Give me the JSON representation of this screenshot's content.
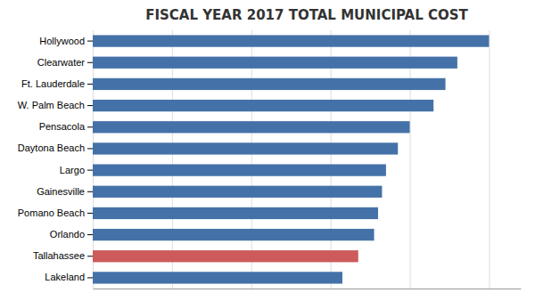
{
  "chart_data": {
    "type": "bar",
    "orientation": "horizontal",
    "title": "FISCAL YEAR 2017 TOTAL MUNICIPAL COST",
    "categories": [
      "Lakeland",
      "Tallahassee",
      "Orlando",
      "Pomano Beach",
      "Gainesville",
      "Largo",
      "Daytona Beach",
      "Pensacola",
      "W. Palm Beach",
      "Ft. Lauderdale",
      "Clearwater",
      "Hollywood"
    ],
    "values": [
      63,
      67,
      71,
      72,
      73,
      74,
      77,
      80,
      86,
      89,
      92,
      100
    ],
    "colors": [
      "#4472A8",
      "#CD5B5B",
      "#4472A8",
      "#4472A8",
      "#4472A8",
      "#4472A8",
      "#4472A8",
      "#4472A8",
      "#4472A8",
      "#4472A8",
      "#4472A8",
      "#4472A8"
    ],
    "xlim": [
      0,
      108
    ],
    "xticks": [
      0,
      20,
      40,
      60,
      80,
      100
    ],
    "grid": true,
    "tick_labels": "y"
  }
}
